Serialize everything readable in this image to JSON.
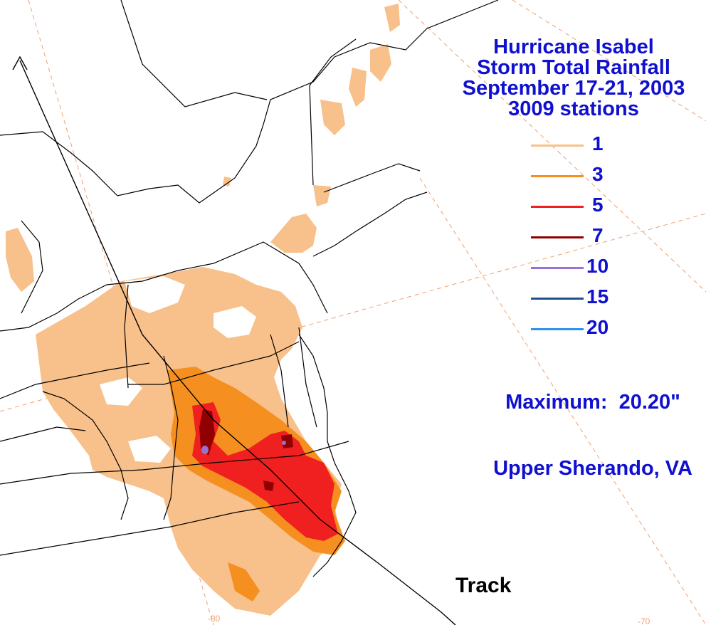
{
  "title": {
    "line1": "Hurricane Isabel",
    "line2": "Storm Total Rainfall",
    "line3": "September 17-21, 2003",
    "line4": "3009 stations"
  },
  "legend": [
    {
      "label": "1",
      "color": "#f8c08a"
    },
    {
      "label": "3",
      "color": "#f59020"
    },
    {
      "label": "5",
      "color": "#f02020"
    },
    {
      "label": "7",
      "color": "#900000"
    },
    {
      "label": "10",
      "color": "#9a70d0"
    },
    {
      "label": "15",
      "color": "#205090"
    },
    {
      "label": "20",
      "color": "#3090f0"
    }
  ],
  "maximum": {
    "line1": "Maximum:  20.20\"",
    "line2": "Upper Sherando, VA"
  },
  "track_label": "Track",
  "lon_labels": {
    "west": "-80",
    "east": "-70"
  },
  "colors": {
    "title_text": "#1010d0",
    "boundary": "#000000",
    "gridline": "#f0a070"
  }
}
